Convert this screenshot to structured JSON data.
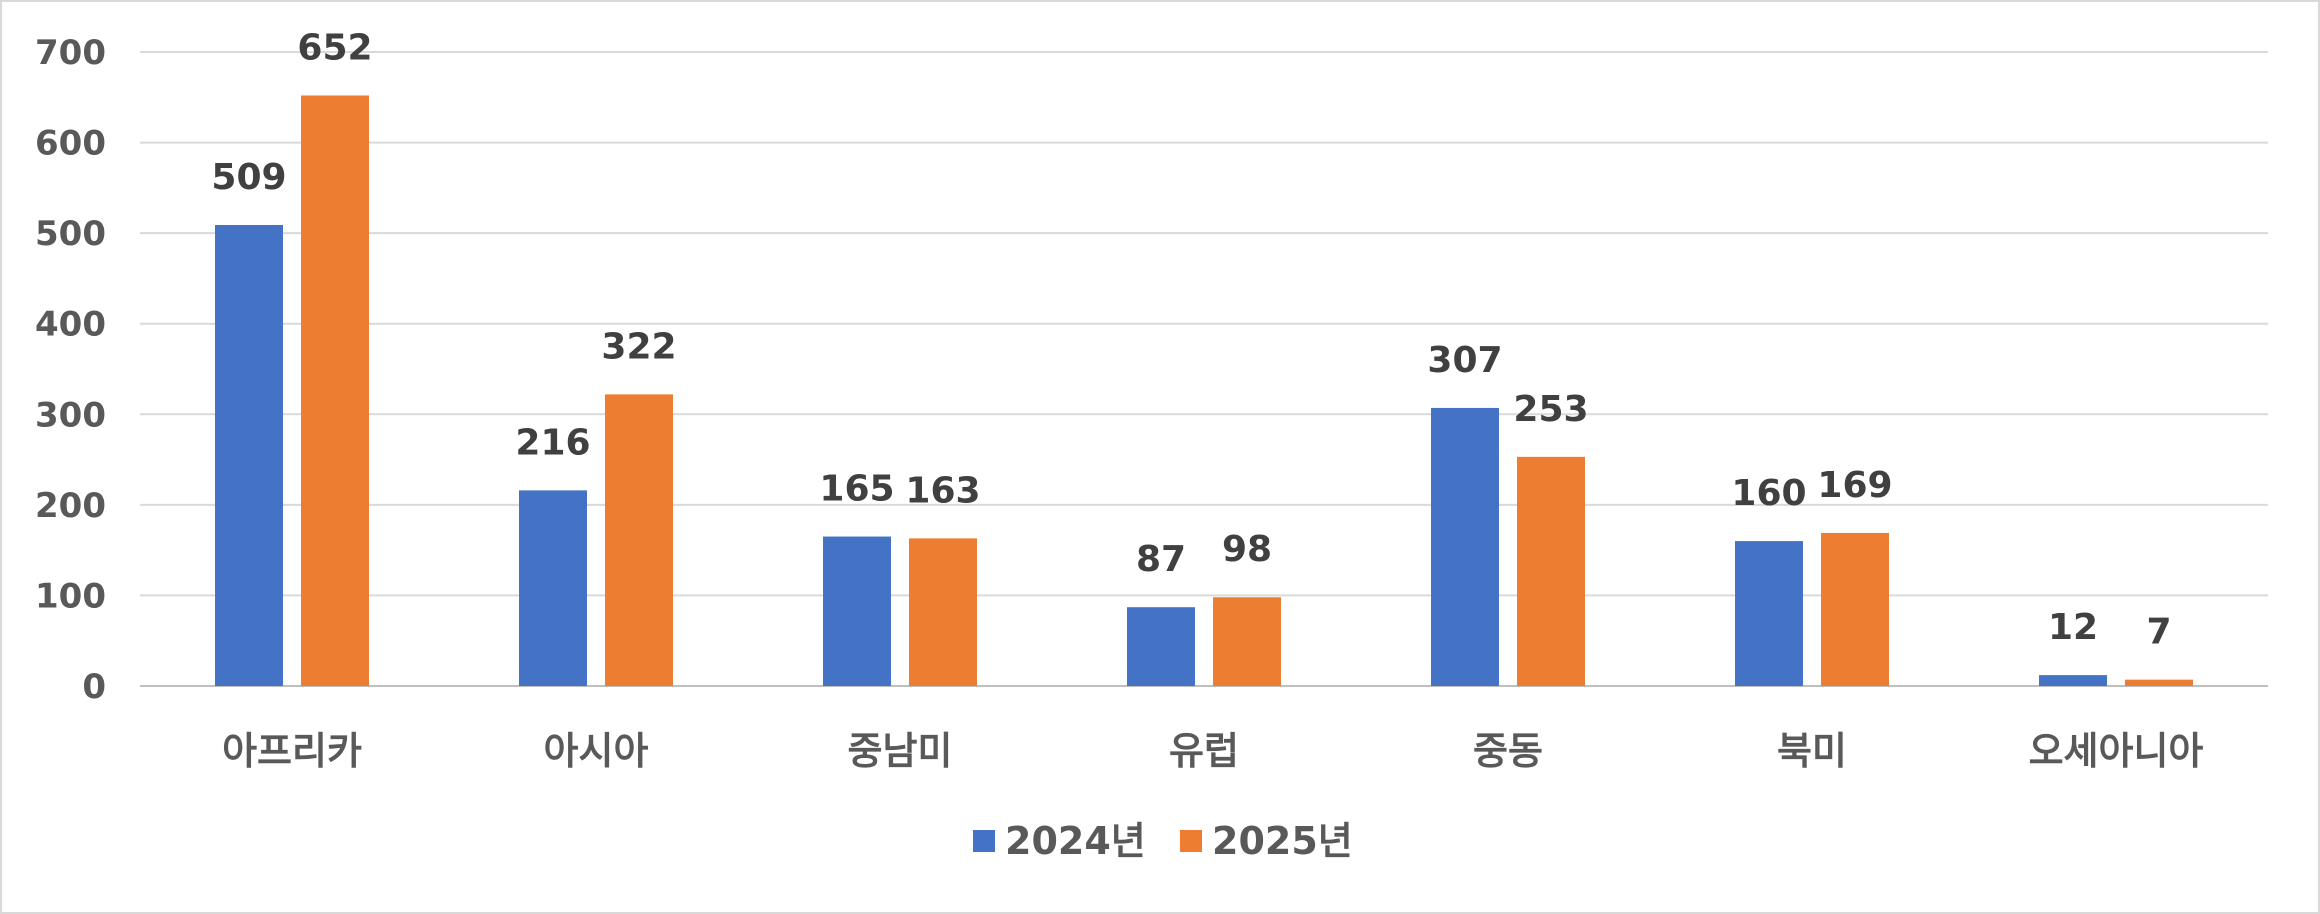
{
  "chart_data": {
    "type": "bar",
    "title": "",
    "xlabel": "",
    "ylabel": "",
    "categories": [
      "아프리카",
      "아시아",
      "중남미",
      "유럽",
      "중동",
      "북미",
      "오세아니아"
    ],
    "series": [
      {
        "name": "2024년",
        "color": "#4472C4",
        "values": [
          509,
          216,
          165,
          87,
          307,
          160,
          12
        ]
      },
      {
        "name": "2025년",
        "color": "#ED7D31",
        "values": [
          652,
          322,
          163,
          98,
          253,
          169,
          7
        ]
      }
    ],
    "ylim": [
      0,
      700
    ],
    "yticks": [
      0,
      100,
      200,
      300,
      400,
      500,
      600,
      700
    ],
    "grid": true,
    "legend_position": "bottom"
  }
}
